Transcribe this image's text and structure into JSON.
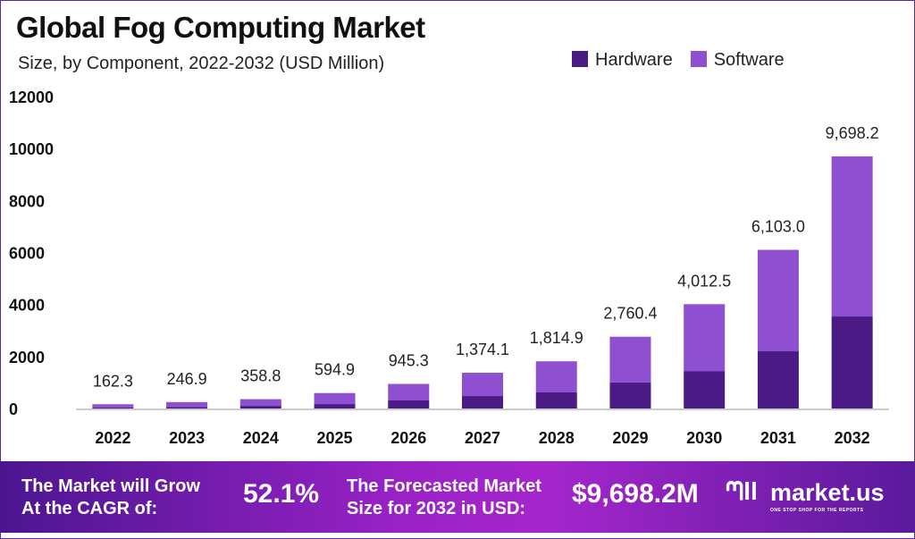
{
  "chart_data": {
    "type": "bar",
    "stacked": true,
    "title": "Global Fog Computing Market",
    "subtitle": "Size, by Component, 2022-2032 (USD Million)",
    "categories": [
      "2022",
      "2023",
      "2024",
      "2025",
      "2026",
      "2027",
      "2028",
      "2029",
      "2030",
      "2031",
      "2032"
    ],
    "totals": [
      162.3,
      246.9,
      358.8,
      594.9,
      945.3,
      1374.1,
      1814.9,
      2760.4,
      4012.5,
      6103.0,
      9698.2
    ],
    "total_labels": [
      "162.3",
      "246.9",
      "358.8",
      "594.9",
      "945.3",
      "1,374.1",
      "1,814.9",
      "2,760.4",
      "4,012.5",
      "6,103.0",
      "9,698.2"
    ],
    "series": [
      {
        "name": "Hardware",
        "color": "#4a1a85",
        "values": [
          40,
          60,
          100,
          170,
          310,
          480,
          620,
          1000,
          1440,
          2200,
          3540
        ]
      },
      {
        "name": "Software",
        "color": "#8e4fd0",
        "values": [
          122.3,
          186.9,
          258.8,
          424.9,
          635.3,
          894.1,
          1194.9,
          1760.4,
          2572.5,
          3903.0,
          6158.2
        ]
      }
    ],
    "yticks": [
      "0",
      "2000",
      "4000",
      "6000",
      "8000",
      "10000",
      "12000"
    ],
    "ylim": [
      0,
      12000
    ],
    "grid": false,
    "legend": "top-right"
  },
  "footer": {
    "cagr_text_1": "The Market will Grow",
    "cagr_text_2": "At the CAGR of:",
    "cagr_value": "52.1%",
    "forecast_text_1": "The Forecasted Market",
    "forecast_text_2": "Size for 2032 in USD:",
    "forecast_value": "$9,698.2M",
    "brand": "market.us",
    "tagline": "ONE STOP SHOP FOR THE REPORTS"
  }
}
